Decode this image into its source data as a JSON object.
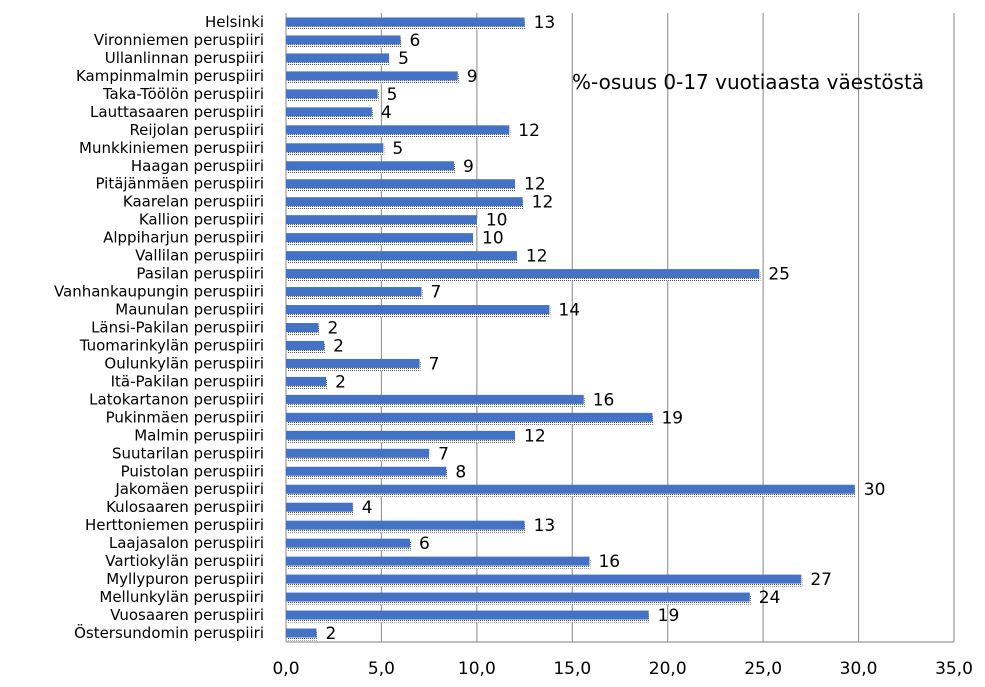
{
  "chart_data": {
    "type": "bar",
    "orientation": "horizontal",
    "title": "%-osuus 0-17 vuotiaasta väestöstä",
    "categories": [
      "Helsinki",
      "Vironniemen peruspiiri",
      "Ullanlinnan peruspiiri",
      "Kampinmalmin peruspiiri",
      "Taka-Töölön peruspiiri",
      "Lauttasaaren peruspiiri",
      "Reijolan peruspiiri",
      "Munkkiniemen peruspiiri",
      "Haagan peruspiiri",
      "Pitäjänmäen peruspiiri",
      "Kaarelan peruspiiri",
      "Kallion peruspiiri",
      "Alppiharjun peruspiiri",
      "Vallilan peruspiiri",
      "Pasilan peruspiiri",
      "Vanhankaupungin peruspiiri",
      "Maunulan peruspiiri",
      "Länsi-Pakilan peruspiiri",
      "Tuomarinkylän peruspiiri",
      "Oulunkylän peruspiiri",
      "Itä-Pakilan peruspiiri",
      "Latokartanon peruspiiri",
      "Pukinmäen peruspiiri",
      "Malmin peruspiiri",
      "Suutarilan peruspiiri",
      "Puistolan peruspiiri",
      "Jakomäen peruspiiri",
      "Kulosaaren peruspiiri",
      "Herttoniemen peruspiiri",
      "Laajasalon peruspiiri",
      "Vartiokylän peruspiiri",
      "Myllypuron peruspiiri",
      "Mellunkylän peruspiiri",
      "Vuosaaren peruspiiri",
      "Östersundomin peruspiiri"
    ],
    "values": [
      12.5,
      6.0,
      5.4,
      9.0,
      4.8,
      4.5,
      11.7,
      5.1,
      8.8,
      12.0,
      12.4,
      10.0,
      9.8,
      12.1,
      24.8,
      7.1,
      13.8,
      1.7,
      2.0,
      7.0,
      2.1,
      15.6,
      19.2,
      12.0,
      7.5,
      8.4,
      29.8,
      3.5,
      12.5,
      6.5,
      15.9,
      27.0,
      24.3,
      19.0,
      1.6
    ],
    "data_labels": [
      "13",
      "6",
      "5",
      "9",
      "5",
      "4",
      "12",
      "5",
      "9",
      "12",
      "12",
      "10",
      "10",
      "12",
      "25",
      "7",
      "14",
      "2",
      "2",
      "7",
      "2",
      "16",
      "19",
      "12",
      "7",
      "8",
      "30",
      "4",
      "13",
      "6",
      "16",
      "27",
      "24",
      "19",
      "2"
    ],
    "xlim": [
      0,
      35
    ],
    "xticks": [
      0,
      5,
      10,
      15,
      20,
      25,
      30,
      35
    ],
    "xtick_labels": [
      "0,0",
      "5,0",
      "10,0",
      "15,0",
      "20,0",
      "25,0",
      "30,0",
      "35,0"
    ],
    "grid": true,
    "legend": "none",
    "bar_color": "#4472C4",
    "grid_color": "#9a9a9a"
  }
}
